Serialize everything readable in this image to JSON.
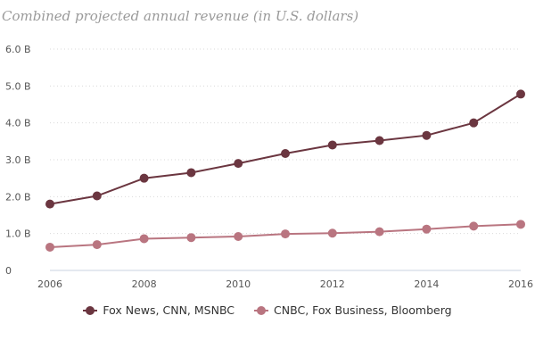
{
  "chart_data": {
    "type": "line",
    "title": "Combined projected annual revenue (in U.S. dollars)",
    "xlabel": "",
    "ylabel": "",
    "x": [
      2006,
      2007,
      2008,
      2009,
      2010,
      2011,
      2012,
      2013,
      2014,
      2015,
      2016
    ],
    "x_ticks": [
      "2006",
      "2008",
      "2010",
      "2012",
      "2014",
      "2016"
    ],
    "y_ticks": [
      "0",
      "1.0 B",
      "2.0 B",
      "3.0 B",
      "4.0 B",
      "5.0 B",
      "6.0 B"
    ],
    "ylim": [
      0,
      6
    ],
    "y_unit": "billion USD",
    "grid": true,
    "legend_position": "bottom",
    "series": [
      {
        "name": "Fox News, CNN, MSNBC",
        "color": "#6b3640",
        "values": [
          1.8,
          2.02,
          2.5,
          2.65,
          2.9,
          3.17,
          3.4,
          3.52,
          3.66,
          4.0,
          4.78
        ]
      },
      {
        "name": "CNBC, Fox Business, Bloomberg",
        "color": "#b97580",
        "values": [
          0.63,
          0.7,
          0.86,
          0.89,
          0.92,
          0.99,
          1.01,
          1.05,
          1.12,
          1.2,
          1.25
        ]
      }
    ]
  }
}
